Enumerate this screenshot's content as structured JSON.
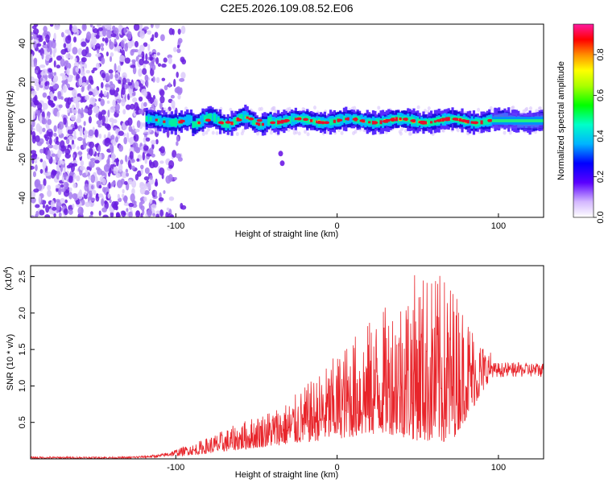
{
  "title": "C2E5.2026.109.08.52.E06",
  "chart_data": [
    {
      "type": "heatmap",
      "xlabel": "Height of straight line (km)",
      "ylabel": "Frequency (Hz)",
      "xlim": [
        -190,
        128
      ],
      "ylim": [
        -50,
        50
      ],
      "xticks": [
        -100,
        0,
        100
      ],
      "xtick_labels": [
        "-100",
        "0",
        "100"
      ],
      "yticks": [
        -40,
        -20,
        0,
        20,
        40
      ],
      "ytick_labels": [
        "-40",
        "-20",
        "0",
        "20",
        "40"
      ],
      "colorbar": {
        "label": "Normalized spectral amplitude",
        "range": [
          0,
          0.95
        ],
        "ticks": [
          0,
          0.2,
          0.4,
          0.6,
          0.8
        ],
        "tick_labels": [
          "0.0",
          "0.2",
          "0.4",
          "0.6",
          "0.8"
        ]
      },
      "description_values": {
        "noise_region_x": [
          -190,
          -95
        ],
        "signal_band_center_hz": 0,
        "signal_band_halfwidth_hz": 4,
        "signal_onset_km": -118,
        "peak_amplitude_region_km": [
          20,
          95
        ],
        "isolated_points": [
          {
            "x": -35,
            "y": -17
          },
          {
            "x": -34,
            "y": -22
          }
        ]
      },
      "colors": {
        "noise": "#7a2be0",
        "low": "#5a2cff",
        "mid": "#00c8ff",
        "high": "#e01030"
      }
    },
    {
      "type": "line",
      "xlabel": "Height of straight line (km)",
      "ylabel": "SNR (10 * v/v)",
      "scale_label": "(x10",
      "scale_exp": "4",
      "xlim": [
        -190,
        128
      ],
      "ylim": [
        0,
        2.65
      ],
      "xticks": [
        -100,
        0,
        100
      ],
      "xtick_labels": [
        "-100",
        "0",
        "100"
      ],
      "yticks": [
        0.5,
        1.0,
        1.5,
        2.0,
        2.5
      ],
      "ytick_labels": [
        "0.5",
        "1.0",
        "1.5",
        "2.0",
        "2.5"
      ],
      "color": "#e8242a",
      "envelope": {
        "x": [
          -190,
          -130,
          -110,
          -90,
          -70,
          -50,
          -30,
          -10,
          10,
          30,
          50,
          70,
          90,
          96,
          110,
          128
        ],
        "upper": [
          0.03,
          0.03,
          0.06,
          0.2,
          0.4,
          0.6,
          0.8,
          1.2,
          1.7,
          2.1,
          2.6,
          2.5,
          1.6,
          1.45,
          1.4,
          1.4
        ],
        "lower": [
          0.0,
          0.0,
          0.02,
          0.05,
          0.1,
          0.15,
          0.2,
          0.25,
          0.3,
          0.35,
          0.25,
          0.2,
          0.9,
          1.15,
          1.15,
          1.15
        ]
      }
    }
  ]
}
